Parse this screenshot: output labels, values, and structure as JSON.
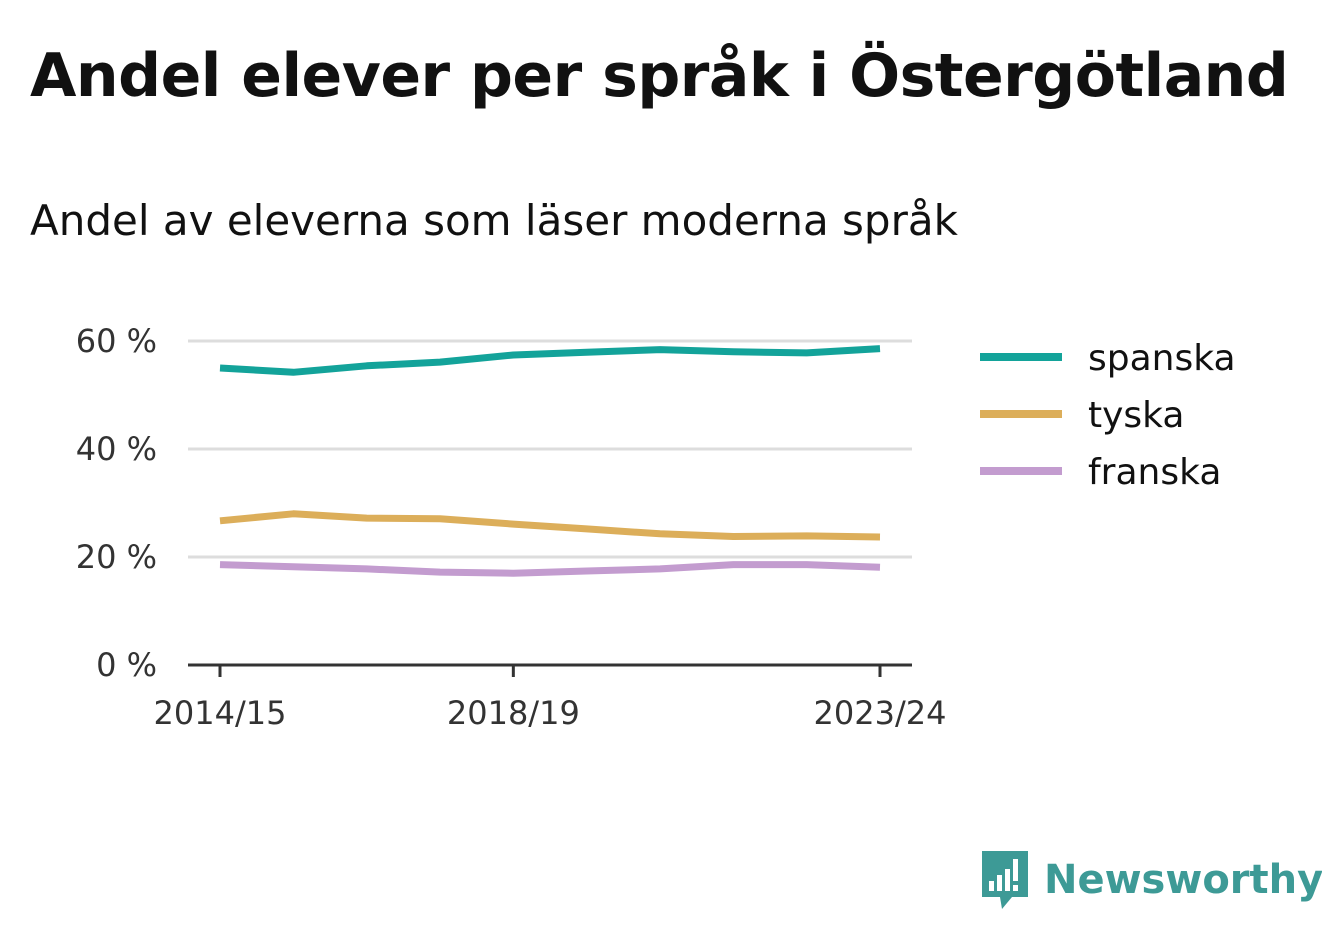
{
  "colors": {
    "spanska": "#13a39a",
    "tyska": "#dcae5a",
    "franska": "#c39ccf",
    "grid": "#dddddd",
    "axis": "#333333",
    "brand": "#3d9a96"
  },
  "brand": {
    "name": "Newsworthy",
    "icon": "newsworthy-chat-chart-icon"
  },
  "chart_data": {
    "type": "line",
    "title": "Andel elever per språk i Östergötland",
    "subtitle": "Andel av eleverna som läser moderna språk",
    "x": [
      "2014/15",
      "2015/16",
      "2016/17",
      "2017/18",
      "2018/19",
      "2019/20",
      "2020/21",
      "2021/22",
      "2022/23",
      "2023/24"
    ],
    "x_tick_labels": [
      "2014/15",
      "2018/19",
      "2023/24"
    ],
    "y_ticks": [
      0,
      20,
      40,
      60
    ],
    "y_tick_labels": [
      "0 %",
      "20 %",
      "40 %",
      "60 %"
    ],
    "ylim": [
      0,
      60
    ],
    "grid": true,
    "legend": "right",
    "series": [
      {
        "name": "spanska",
        "values": [
          55.0,
          54.2,
          55.4,
          56.1,
          57.4,
          57.9,
          58.4,
          58.0,
          57.8,
          58.6
        ]
      },
      {
        "name": "tyska",
        "values": [
          26.7,
          28.0,
          27.2,
          27.1,
          26.1,
          25.2,
          24.3,
          23.8,
          23.9,
          23.7
        ]
      },
      {
        "name": "franska",
        "values": [
          18.6,
          18.2,
          17.8,
          17.2,
          17.0,
          17.4,
          17.8,
          18.6,
          18.6,
          18.1
        ]
      }
    ]
  }
}
